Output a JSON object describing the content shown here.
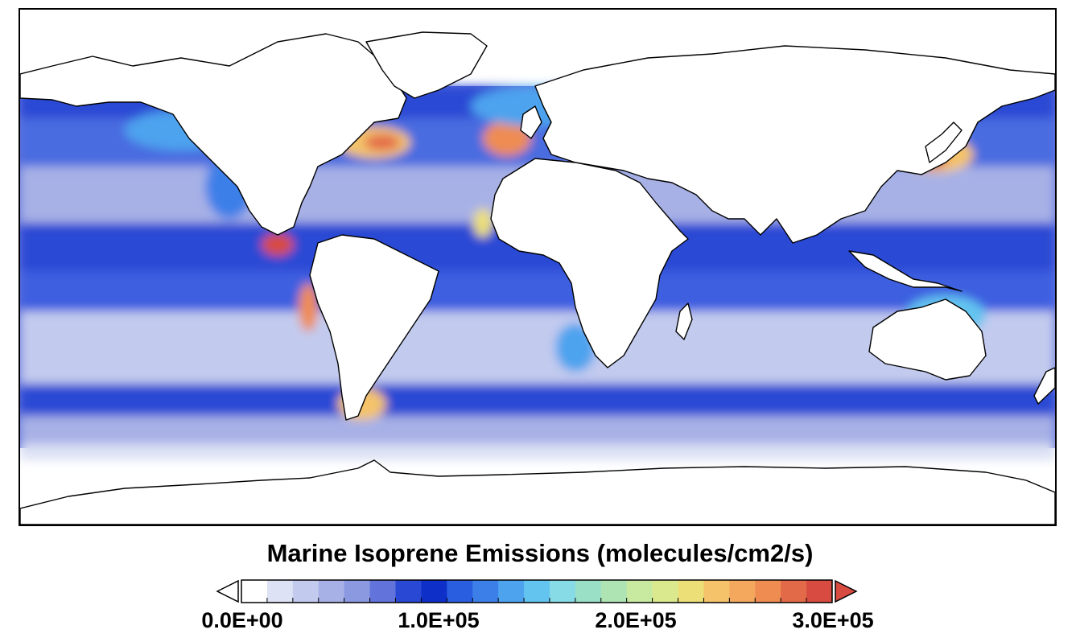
{
  "map": {
    "type": "global-field-map",
    "projection": "cylindrical-equidistant",
    "land_fill": "#ffffff",
    "coastline_color": "#000000"
  },
  "colorbar": {
    "title": "Marine Isoprene Emissions (molecules/cm2/s)",
    "min": 0,
    "max": 300000,
    "tick_labels": [
      "0.0E+00",
      "1.0E+05",
      "2.0E+05",
      "3.0E+05"
    ],
    "tick_values": [
      0,
      100000,
      200000,
      300000
    ],
    "extend": "both",
    "colors": [
      "#ffffff",
      "#dde2f4",
      "#c2caee",
      "#a7b1e6",
      "#8b99e0",
      "#6273dc",
      "#2948d4",
      "#0f2fc9",
      "#2a5ee0",
      "#3d7fe8",
      "#4ea3ee",
      "#63c4f0",
      "#86dbe6",
      "#9ae0c6",
      "#aee4b4",
      "#c7eaa0",
      "#dbe98e",
      "#ecdf78",
      "#f4c36a",
      "#f3a85e",
      "#ee8c52",
      "#e36a49",
      "#d84b40"
    ]
  }
}
